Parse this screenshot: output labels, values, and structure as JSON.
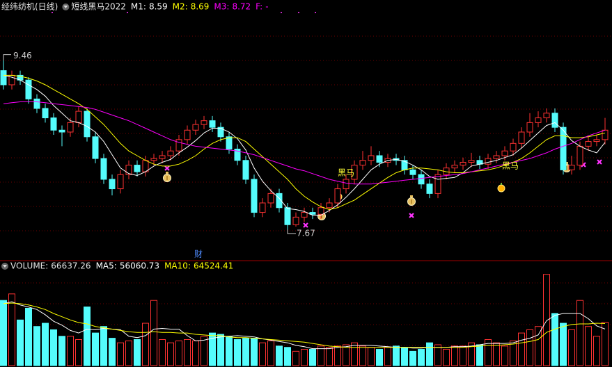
{
  "chart_data": [
    {
      "type": "candlestick",
      "title": "经纬纺机(日线)",
      "indicator_name": "短线黑马2022",
      "indicators": [
        {
          "name": "M1:",
          "value": 8.59,
          "color": "#ffffff",
          "values": [
            9.3,
            9.28,
            9.25,
            9.2,
            9.15,
            9.08,
            8.98,
            8.9,
            8.82,
            8.8,
            8.76,
            8.7,
            8.6,
            8.46,
            8.32,
            8.26,
            8.24,
            8.28,
            8.34,
            8.38,
            8.41,
            8.48,
            8.54,
            8.61,
            8.69,
            8.74,
            8.74,
            8.7,
            8.63,
            8.51,
            8.32,
            8.18,
            8.08,
            8.0,
            7.89,
            7.88,
            7.86,
            7.82,
            7.82,
            7.87,
            7.93,
            8.01,
            8.1,
            8.2,
            8.3,
            8.36,
            8.4,
            8.41,
            8.39,
            8.35,
            8.3,
            8.23,
            8.2,
            8.21,
            8.22,
            8.27,
            8.34,
            8.36,
            8.38,
            8.4,
            8.43,
            8.46,
            8.53,
            8.61,
            8.69,
            8.77,
            8.8,
            8.72,
            8.61,
            8.55,
            8.51,
            8.48,
            8.59
          ]
        },
        {
          "name": "M2:",
          "value": 8.69,
          "color": "#ffff00",
          "values": [
            9.3,
            9.3,
            9.29,
            9.27,
            9.24,
            9.2,
            9.15,
            9.1,
            9.05,
            9.0,
            8.94,
            8.86,
            8.78,
            8.68,
            8.58,
            8.5,
            8.45,
            8.4,
            8.36,
            8.34,
            8.34,
            8.36,
            8.4,
            8.45,
            8.52,
            8.58,
            8.62,
            8.64,
            8.64,
            8.6,
            8.52,
            8.44,
            8.36,
            8.28,
            8.2,
            8.1,
            8.02,
            7.96,
            7.91,
            7.88,
            7.9,
            7.94,
            7.98,
            8.04,
            8.1,
            8.16,
            8.22,
            8.27,
            8.3,
            8.32,
            8.32,
            8.31,
            8.3,
            8.28,
            8.27,
            8.27,
            8.28,
            8.29,
            8.3,
            8.32,
            8.35,
            8.38,
            8.42,
            8.48,
            8.55,
            8.62,
            8.66,
            8.66,
            8.64,
            8.64,
            8.65,
            8.67,
            8.69
          ]
        },
        {
          "name": "M3:",
          "value": 8.72,
          "color": "#ff00ff",
          "values": [
            9.0,
            9.01,
            9.02,
            9.02,
            9.02,
            9.01,
            9.0,
            8.99,
            8.98,
            8.97,
            8.96,
            8.94,
            8.91,
            8.88,
            8.85,
            8.82,
            8.78,
            8.74,
            8.7,
            8.66,
            8.62,
            8.59,
            8.57,
            8.55,
            8.54,
            8.53,
            8.52,
            8.51,
            8.5,
            8.48,
            8.46,
            8.43,
            8.4,
            8.37,
            8.34,
            8.31,
            8.29,
            8.26,
            8.23,
            8.2,
            8.18,
            8.16,
            8.15,
            8.15,
            8.15,
            8.16,
            8.17,
            8.18,
            8.19,
            8.2,
            8.21,
            8.22,
            8.23,
            8.24,
            8.25,
            8.26,
            8.28,
            8.3,
            8.32,
            8.34,
            8.36,
            8.38,
            8.4,
            8.42,
            8.45,
            8.48,
            8.52,
            8.55,
            8.58,
            8.62,
            8.66,
            8.69,
            8.72
          ]
        },
        {
          "name": "F:",
          "text": "-",
          "color": "#ff00ff"
        }
      ],
      "ylim": [
        7.56,
        9.95
      ],
      "up_color": "#ff3232",
      "down_color": "#54fcfc",
      "open": [
        9.35,
        9.2,
        9.3,
        9.25,
        9.05,
        8.95,
        8.85,
        8.72,
        8.7,
        8.8,
        8.92,
        8.65,
        8.42,
        8.2,
        8.1,
        8.25,
        8.35,
        8.28,
        8.4,
        8.42,
        8.45,
        8.5,
        8.62,
        8.72,
        8.78,
        8.82,
        8.75,
        8.65,
        8.52,
        8.4,
        8.2,
        7.85,
        7.95,
        8.05,
        7.9,
        7.72,
        7.8,
        7.85,
        7.83,
        7.9,
        7.95,
        8.1,
        8.2,
        8.35,
        8.4,
        8.45,
        8.38,
        8.42,
        8.4,
        8.3,
        8.25,
        8.15,
        8.05,
        8.25,
        8.32,
        8.35,
        8.38,
        8.4,
        8.36,
        8.42,
        8.45,
        8.5,
        8.58,
        8.7,
        8.8,
        8.85,
        8.9,
        8.75,
        8.3,
        8.35,
        8.55,
        8.6,
        8.62
      ],
      "high": [
        9.46,
        9.35,
        9.35,
        9.28,
        9.1,
        9.0,
        8.9,
        8.77,
        8.85,
        8.97,
        8.95,
        8.7,
        8.47,
        8.25,
        8.3,
        8.4,
        8.4,
        8.45,
        8.47,
        8.5,
        8.55,
        8.67,
        8.77,
        8.83,
        8.87,
        8.87,
        8.8,
        8.7,
        8.57,
        8.45,
        8.25,
        8.0,
        8.1,
        8.1,
        7.95,
        7.85,
        7.9,
        7.9,
        7.95,
        8.0,
        8.15,
        8.25,
        8.4,
        8.5,
        8.55,
        8.5,
        8.47,
        8.47,
        8.45,
        8.35,
        8.3,
        8.2,
        8.3,
        8.37,
        8.4,
        8.43,
        8.48,
        8.45,
        8.47,
        8.5,
        8.55,
        8.63,
        8.75,
        8.9,
        8.92,
        8.95,
        8.95,
        8.8,
        8.45,
        8.6,
        8.65,
        8.67,
        8.85
      ],
      "low": [
        9.15,
        9.15,
        9.2,
        9.0,
        8.9,
        8.8,
        8.67,
        8.55,
        8.65,
        8.75,
        8.6,
        8.37,
        8.15,
        8.03,
        8.05,
        8.2,
        8.23,
        8.23,
        8.35,
        8.37,
        8.4,
        8.45,
        8.57,
        8.67,
        8.73,
        8.7,
        8.6,
        8.47,
        8.35,
        8.15,
        7.8,
        7.8,
        7.9,
        7.85,
        7.67,
        7.7,
        7.75,
        7.78,
        7.78,
        7.85,
        7.9,
        8.05,
        8.15,
        8.3,
        8.35,
        8.33,
        8.33,
        8.35,
        8.25,
        8.2,
        8.1,
        8.0,
        8.0,
        8.2,
        8.27,
        8.3,
        8.33,
        8.31,
        8.31,
        8.37,
        8.4,
        8.45,
        8.53,
        8.65,
        8.75,
        8.8,
        8.7,
        8.25,
        8.25,
        8.3,
        8.5,
        8.55,
        8.57
      ],
      "close": [
        9.2,
        9.3,
        9.25,
        9.05,
        8.95,
        8.85,
        8.72,
        8.7,
        8.8,
        8.92,
        8.65,
        8.42,
        8.2,
        8.1,
        8.25,
        8.35,
        8.28,
        8.4,
        8.42,
        8.45,
        8.5,
        8.62,
        8.72,
        8.78,
        8.82,
        8.75,
        8.65,
        8.52,
        8.4,
        8.2,
        7.85,
        7.95,
        8.05,
        7.9,
        7.72,
        7.8,
        7.85,
        7.83,
        7.9,
        7.95,
        8.1,
        8.2,
        8.35,
        8.4,
        8.45,
        8.38,
        8.42,
        8.4,
        8.3,
        8.25,
        8.15,
        8.05,
        8.25,
        8.32,
        8.35,
        8.38,
        8.4,
        8.36,
        8.42,
        8.45,
        8.5,
        8.58,
        8.7,
        8.8,
        8.85,
        8.9,
        8.75,
        8.3,
        8.35,
        8.55,
        8.6,
        8.62,
        8.72
      ],
      "high_mark": 9.46,
      "low_mark": 7.67,
      "annotations": [
        "黑马",
        "黑马",
        "财"
      ]
    },
    {
      "type": "bar",
      "label": "VOLUME:",
      "value": 66637.26,
      "ylim": [
        0,
        145000
      ],
      "values": [
        100000,
        110000,
        70000,
        88000,
        60000,
        65000,
        55000,
        45000,
        45000,
        40000,
        90000,
        50000,
        60000,
        42000,
        35000,
        38000,
        40000,
        65000,
        100000,
        40000,
        35000,
        38000,
        40000,
        38000,
        45000,
        50000,
        48000,
        45000,
        40000,
        42000,
        42000,
        35000,
        38000,
        30000,
        28000,
        22000,
        25000,
        25000,
        30000,
        28000,
        30000,
        32000,
        35000,
        30000,
        28000,
        25000,
        28000,
        30000,
        28000,
        22000,
        25000,
        35000,
        32000,
        25000,
        30000,
        30000,
        35000,
        32000,
        40000,
        35000,
        30000,
        38000,
        50000,
        55000,
        60000,
        140000,
        80000,
        65000,
        55000,
        100000,
        60000,
        45000,
        66637.26
      ],
      "ma": [
        {
          "name": "MA5:",
          "value": 56060.73,
          "color": "#ffffff",
          "values": [
            95000,
            98000,
            93000,
            90000,
            86000,
            78000,
            68000,
            62000,
            54000,
            50000,
            56000,
            55000,
            57000,
            56000,
            55000,
            45000,
            43000,
            46000,
            56000,
            57000,
            56000,
            56000,
            46000,
            38000,
            39000,
            42000,
            44000,
            45000,
            46000,
            45000,
            44000,
            41000,
            39000,
            37000,
            35000,
            31000,
            29000,
            26000,
            26000,
            26000,
            28000,
            29000,
            31000,
            31000,
            31000,
            30000,
            29000,
            28000,
            28000,
            27000,
            27000,
            28000,
            28000,
            28000,
            29000,
            29000,
            30000,
            32000,
            34000,
            34000,
            34000,
            35000,
            39000,
            42000,
            47000,
            69000,
            77000,
            80000,
            80000,
            80000,
            72000,
            61000,
            56060.73
          ]
        },
        {
          "name": "MA10:",
          "value": 64524.41,
          "color": "#ffff00",
          "values": [
            95000,
            96000,
            95000,
            93000,
            90000,
            86000,
            80000,
            75000,
            70000,
            66000,
            64000,
            60000,
            58000,
            56000,
            54000,
            52000,
            51000,
            51000,
            52000,
            51000,
            51000,
            50000,
            50000,
            48000,
            47000,
            46000,
            46000,
            44000,
            43000,
            43000,
            42000,
            41000,
            40000,
            39000,
            38000,
            37000,
            36000,
            34000,
            32000,
            30000,
            29000,
            28000,
            28000,
            28000,
            28000,
            28000,
            28000,
            28000,
            28000,
            28000,
            28000,
            28000,
            28000,
            28000,
            28000,
            28000,
            29000,
            30000,
            31000,
            31000,
            32000,
            33000,
            35000,
            37000,
            40000,
            51000,
            56000,
            60000,
            63000,
            64000,
            64000,
            65000,
            64524.41
          ]
        }
      ]
    }
  ]
}
